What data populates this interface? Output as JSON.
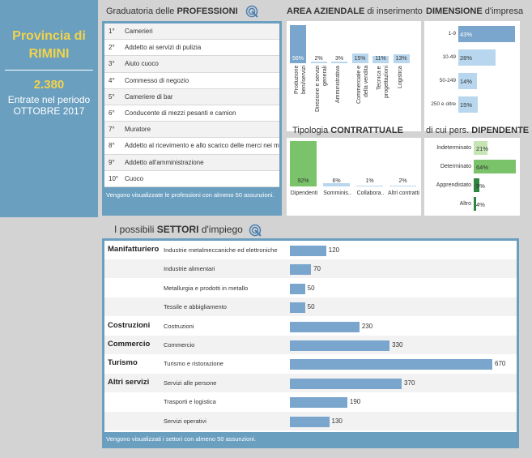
{
  "left": {
    "province_line1": "Provincia di",
    "province_line2": "RIMINI",
    "total": "2.380",
    "line1": "Entrate nel periodo",
    "line2": "OTTOBRE 2017"
  },
  "professions": {
    "title_prefix": "Graduatoria delle ",
    "title_bold": "PROFESSIONI",
    "items": [
      {
        "rank": "1°",
        "label": "Camerieri"
      },
      {
        "rank": "2°",
        "label": "Addetto ai servizi di pulizia"
      },
      {
        "rank": "3°",
        "label": "Aiuto cuoco"
      },
      {
        "rank": "4°",
        "label": "Commesso di negozio"
      },
      {
        "rank": "5°",
        "label": "Cameriere di bar"
      },
      {
        "rank": "6°",
        "label": "Conducente di mezzi pesanti e camion"
      },
      {
        "rank": "7°",
        "label": "Muratore"
      },
      {
        "rank": "8°",
        "label": "Addetto al ricevimento e allo scarico delle merci nei mag"
      },
      {
        "rank": "9°",
        "label": "Addetto all'amministrazione"
      },
      {
        "rank": "10°",
        "label": "Cuoco"
      }
    ],
    "note": "Vengono visualizzate le professioni con almeno 50 assunzioni."
  },
  "area": {
    "title_bold": "AREA AZIENDALE",
    "title_rest": " di inserimento",
    "bars": [
      {
        "label": "Produzione beni/servizi",
        "value": 56,
        "pct": "56%"
      },
      {
        "label": "Direzione e servizi generali",
        "value": 2,
        "pct": "2%"
      },
      {
        "label": "Amministrativa",
        "value": 3,
        "pct": "3%"
      },
      {
        "label": "Commerciale e della vendita",
        "value": 15,
        "pct": "15%"
      },
      {
        "label": "Tecnica e progettazioni",
        "value": 11,
        "pct": "11%"
      },
      {
        "label": "Logistica",
        "value": 13,
        "pct": "13%"
      }
    ]
  },
  "dimension": {
    "title_bold": "DIMENSIONE",
    "title_rest": " d'impresa",
    "bars": [
      {
        "label": "1-9",
        "value": 43,
        "pct": "43%"
      },
      {
        "label": "10-49",
        "value": 28,
        "pct": "28%"
      },
      {
        "label": "50-249",
        "value": 14,
        "pct": "14%"
      },
      {
        "label": "250 e oltre",
        "value": 15,
        "pct": "15%"
      }
    ]
  },
  "contract": {
    "title_prefix": "Tipologia ",
    "title_bold": "CONTRATTUALE",
    "bars": [
      {
        "label": "Dipendenti",
        "value": 92,
        "pct": "92%"
      },
      {
        "label": "Somminis..",
        "value": 6,
        "pct": "6%"
      },
      {
        "label": "Collabora..",
        "value": 1,
        "pct": "1%"
      },
      {
        "label": "Altri contratti",
        "value": 2,
        "pct": "2%"
      }
    ]
  },
  "employee": {
    "title_prefix": "di cui pers. ",
    "title_bold": "DIPENDENTE",
    "bars": [
      {
        "label": "Indeterminato",
        "value": 21,
        "pct": "21%"
      },
      {
        "label": "Determinato",
        "value": 64,
        "pct": "64%"
      },
      {
        "label": "Apprendistato",
        "value": 9,
        "pct": "9%"
      },
      {
        "label": "Altro",
        "value": 4,
        "pct": "4%"
      }
    ]
  },
  "sectors": {
    "title_prefix": "I possibili ",
    "title_bold": "SETTORI",
    "title_rest": " d'impiego",
    "rows": [
      {
        "group": "Manifatturiero",
        "label": "Industrie metalmeccaniche ed elettroniche",
        "value": 120
      },
      {
        "group": "",
        "label": "Industrie alimentari",
        "value": 70
      },
      {
        "group": "",
        "label": "Metallurgia e prodotti in metallo",
        "value": 50
      },
      {
        "group": "",
        "label": "Tessile e abbigliamento",
        "value": 50
      },
      {
        "group": "Costruzioni",
        "label": "Costruzioni",
        "value": 230
      },
      {
        "group": "Commercio",
        "label": "Commercio",
        "value": 330
      },
      {
        "group": "Turismo",
        "label": "Turismo e ristorazione",
        "value": 670
      },
      {
        "group": "Altri servizi",
        "label": "Servizi alle persone",
        "value": 370
      },
      {
        "group": "",
        "label": "Trasporti e logistica",
        "value": 190
      },
      {
        "group": "",
        "label": "Servizi operativi",
        "value": 130
      }
    ],
    "note": "Vengono visualizzati i settori con almeno 50 assunzioni."
  },
  "colors": {
    "panel_blue": "#6a9fc0",
    "bar_blue": "#7aa5cc",
    "accent_yellow": "#f2d34a",
    "bar_green": "#7ac36a",
    "dark_green": "#2e8540"
  }
}
